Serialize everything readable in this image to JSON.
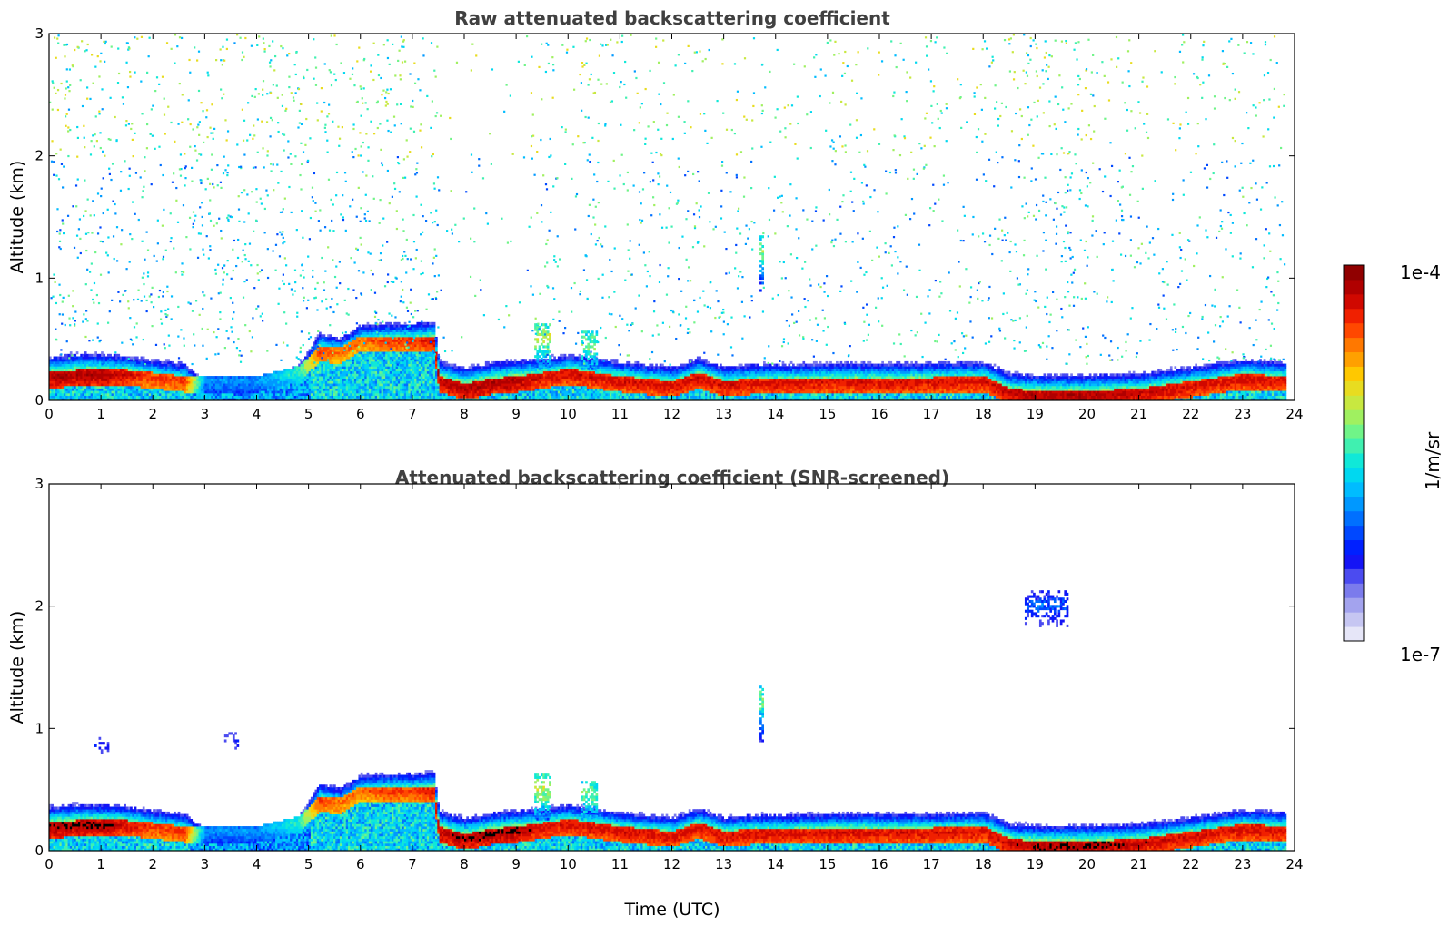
{
  "chart_data": [
    {
      "type": "heatmap",
      "title": "Raw attenuated backscattering coefficient",
      "xlabel": "",
      "ylabel": "Altitude (km)",
      "xlim": [
        0,
        24
      ],
      "ylim": [
        0,
        3
      ],
      "xticks": [
        "0",
        "1",
        "2",
        "3",
        "4",
        "5",
        "6",
        "7",
        "8",
        "9",
        "10",
        "11",
        "12",
        "13",
        "14",
        "15",
        "16",
        "17",
        "18",
        "19",
        "20",
        "21",
        "22",
        "23",
        "24"
      ],
      "yticks": [
        "0",
        "1",
        "2",
        "3"
      ],
      "x_end": 23.8,
      "boundary_layer": [
        [
          0,
          0.25,
          4
        ],
        [
          0.5,
          0.27,
          4
        ],
        [
          1,
          0.27,
          4
        ],
        [
          1.5,
          0.27,
          3.8
        ],
        [
          2,
          0.25,
          3.6
        ],
        [
          2.6,
          0.22,
          3.6
        ],
        [
          3,
          0.22,
          1.6
        ],
        [
          4,
          0.22,
          1.6
        ],
        [
          4.8,
          0.3,
          2.2
        ],
        [
          5.2,
          0.47,
          3.6
        ],
        [
          5.6,
          0.45,
          3.4
        ],
        [
          6,
          0.55,
          3.4
        ],
        [
          6.5,
          0.55,
          3.6
        ],
        [
          7,
          0.55,
          3.6
        ],
        [
          7.4,
          0.55,
          3.8
        ],
        [
          7.5,
          0.22,
          3.9
        ],
        [
          8,
          0.16,
          4
        ],
        [
          8.5,
          0.2,
          4
        ],
        [
          9,
          0.22,
          4
        ],
        [
          9.5,
          0.25,
          3.8
        ],
        [
          10,
          0.28,
          3.8
        ],
        [
          11,
          0.22,
          3.8
        ],
        [
          12,
          0.18,
          3.8
        ],
        [
          12.5,
          0.25,
          3.8
        ],
        [
          13,
          0.18,
          3.8
        ],
        [
          13.5,
          0.2,
          3.8
        ],
        [
          14,
          0.2,
          3.8
        ],
        [
          15,
          0.21,
          3.8
        ],
        [
          16,
          0.21,
          3.8
        ],
        [
          17,
          0.21,
          3.8
        ],
        [
          18,
          0.22,
          3.8
        ],
        [
          18.5,
          0.12,
          3.9
        ],
        [
          19,
          0.1,
          4
        ],
        [
          20,
          0.1,
          4
        ],
        [
          21,
          0.12,
          3.9
        ],
        [
          22,
          0.18,
          3.8
        ],
        [
          23,
          0.24,
          3.8
        ],
        [
          23.8,
          0.22,
          3.8
        ]
      ],
      "elevated_layers": [
        [
          13.72,
          1.22,
          0.06,
          2.6
        ],
        [
          9.5,
          0.5,
          0.3,
          2.8
        ],
        [
          10.4,
          0.45,
          0.3,
          2.6
        ]
      ],
      "noise_regions": [
        [
          0,
          7.5,
          1.0,
          0.0
        ],
        [
          7.5,
          9.2,
          0.2,
          0.0
        ],
        [
          9.2,
          18.5,
          0.6,
          0.0
        ],
        [
          18.5,
          20.0,
          1.0,
          0.0
        ],
        [
          20.0,
          23.8,
          0.6,
          0.0
        ]
      ],
      "colorbar_ref": "colorbar"
    },
    {
      "type": "heatmap",
      "title": "Attenuated backscattering coefficient (SNR-screened)",
      "xlabel": "Time (UTC)",
      "ylabel": "Altitude (km)",
      "xlim": [
        0,
        24
      ],
      "ylim": [
        0,
        3
      ],
      "xticks": [
        "0",
        "1",
        "2",
        "3",
        "4",
        "5",
        "6",
        "7",
        "8",
        "9",
        "10",
        "11",
        "12",
        "13",
        "14",
        "15",
        "16",
        "17",
        "18",
        "19",
        "20",
        "21",
        "22",
        "23",
        "24"
      ],
      "yticks": [
        "0",
        "1",
        "2",
        "3"
      ],
      "x_end": 23.8,
      "boundary_layer": [
        [
          0,
          0.25,
          4
        ],
        [
          0.5,
          0.27,
          4
        ],
        [
          1,
          0.27,
          4
        ],
        [
          1.5,
          0.27,
          3.8
        ],
        [
          2,
          0.25,
          3.6
        ],
        [
          2.6,
          0.22,
          3.6
        ],
        [
          3,
          0.22,
          1.6
        ],
        [
          4,
          0.22,
          1.6
        ],
        [
          4.8,
          0.3,
          2.2
        ],
        [
          5.2,
          0.47,
          3.6
        ],
        [
          5.6,
          0.45,
          3.4
        ],
        [
          6,
          0.55,
          3.4
        ],
        [
          6.5,
          0.55,
          3.6
        ],
        [
          7,
          0.55,
          3.6
        ],
        [
          7.4,
          0.55,
          3.8
        ],
        [
          7.5,
          0.22,
          3.9
        ],
        [
          8,
          0.16,
          4
        ],
        [
          8.5,
          0.2,
          4
        ],
        [
          9,
          0.22,
          4
        ],
        [
          9.5,
          0.25,
          3.8
        ],
        [
          10,
          0.28,
          3.8
        ],
        [
          11,
          0.22,
          3.8
        ],
        [
          12,
          0.18,
          3.8
        ],
        [
          12.5,
          0.25,
          3.8
        ],
        [
          13,
          0.18,
          3.8
        ],
        [
          13.5,
          0.2,
          3.8
        ],
        [
          14,
          0.2,
          3.8
        ],
        [
          15,
          0.21,
          3.8
        ],
        [
          16,
          0.21,
          3.8
        ],
        [
          17,
          0.21,
          3.8
        ],
        [
          18,
          0.22,
          3.8
        ],
        [
          18.5,
          0.12,
          3.9
        ],
        [
          19,
          0.1,
          4
        ],
        [
          20,
          0.1,
          4
        ],
        [
          21,
          0.12,
          3.9
        ],
        [
          22,
          0.18,
          3.8
        ],
        [
          23,
          0.24,
          3.8
        ],
        [
          23.8,
          0.22,
          3.8
        ]
      ],
      "elevated_layers": [
        [
          13.72,
          1.22,
          0.06,
          2.6
        ],
        [
          9.5,
          0.5,
          0.3,
          2.8
        ],
        [
          10.4,
          0.45,
          0.3,
          2.6
        ],
        [
          1.0,
          0.85,
          0.25,
          1.0
        ],
        [
          3.5,
          0.9,
          0.25,
          1.0
        ],
        [
          19.2,
          2.0,
          0.8,
          1.5
        ]
      ],
      "noise_regions": [],
      "colorbar_ref": "colorbar"
    }
  ],
  "colorbar": {
    "max_label": "1e-4",
    "min_label": "1e-7",
    "unit_label": "1/m/sr",
    "colors": [
      "#e6e6f8",
      "#c6c6f2",
      "#a3a3ee",
      "#7b7bec",
      "#4b4bf0",
      "#1414f5",
      "#0020ff",
      "#0048ff",
      "#0070ff",
      "#0098ff",
      "#00bcff",
      "#00d8f0",
      "#10e8d8",
      "#40f0b0",
      "#70f488",
      "#a0f060",
      "#c8e840",
      "#e8dc20",
      "#ffc800",
      "#ffa000",
      "#ff7800",
      "#ff4800",
      "#f02000",
      "#d00800",
      "#b00000",
      "#900000"
    ]
  }
}
